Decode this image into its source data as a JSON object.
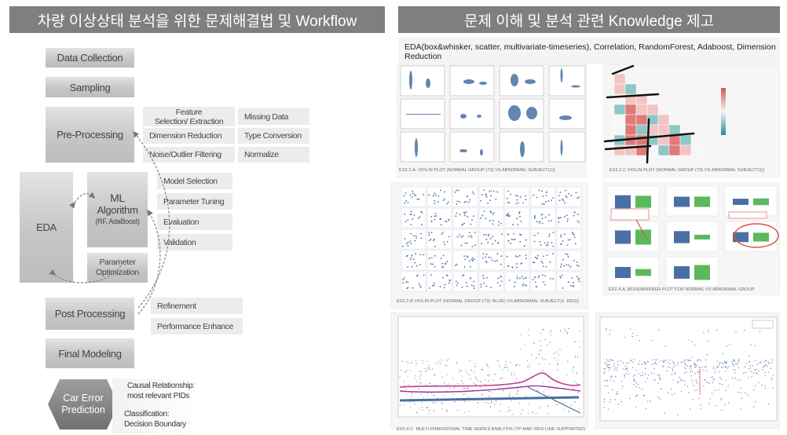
{
  "left": {
    "title": "차량 이상상태 분석을 위한 문제해결법 및 Workflow",
    "steps": {
      "data_collection": "Data Collection",
      "sampling": "Sampling",
      "pre_processing": "Pre-Processing",
      "eda": "EDA",
      "ml_title": "ML",
      "ml_title2": "Algorithm",
      "ml_sub": "(RF, AdaBoost)",
      "param_opt1": "Parameter",
      "param_opt2": "Optimization",
      "post_processing": "Post Processing",
      "final_modeling": "Final Modeling",
      "car_error1": "Car Error",
      "car_error2": "Prediction"
    },
    "pre_items": {
      "feature1": "Feature",
      "feature2": "Selection/ Extraction",
      "dim_red": "Dimension  Reduction",
      "noise": "Noise/Outlier  Filtering",
      "missing": "Missing  Data",
      "type_conv": "Type  Conversion",
      "normalize": "Normalize"
    },
    "ml_items": {
      "model_sel": "Model  Selection",
      "param_tune": "Parameter  Tuning",
      "evaluation": "Evaluation",
      "validation": "Validation"
    },
    "post_items": {
      "refinement": "Refinement",
      "perf": "Performance  Enhance"
    },
    "notes": {
      "causal1": "Causal  Relationship:",
      "causal2": "most  relevant   PIDs",
      "class1": "Classification:",
      "class2": "Decision   Boundary"
    }
  },
  "right": {
    "title": "문제 이해 및 분석 관련 Knowledge 제고",
    "eda_text1": "EDA(box&whisker, scatter, multivariate-timeseries), Correlation, RandomForest, Adaboost, Dimension",
    "eda_text2": "Reduction",
    "captions": {
      "violin": "EX2.2.A. VIOLIN PLOT (NORMAL GROUP (73) VS ABNORMAL SUBJECT(1))",
      "corr": "EX2.2.C VIOLIN PLOT (NORMAL GROUP (73) VS ABNORMAL SUBJECT(1))",
      "scatter": "EX2.2.B VIOLIN PLOT (NORMAL GROUP (73): BLUE) VS ABNORMAL SUBJECT(1: RED))",
      "box": "EX2.4.A. BOX&WHISKER PLOT FOR NORMAL VS ABNORMAL GROUP",
      "ts": "EX2.4.C. MULTI-DIMENSIONAL TIME SERIES ANALYSIS (TP-MAF, REG LINE SUPPORTED)"
    }
  },
  "colors": {
    "header_bg": "#7f7f7f",
    "box_light": "#ececec",
    "plot_blue": "#4a6fa5",
    "heat_red": "#d9534f",
    "green": "#5cb85c",
    "magenta": "#c0408f"
  }
}
